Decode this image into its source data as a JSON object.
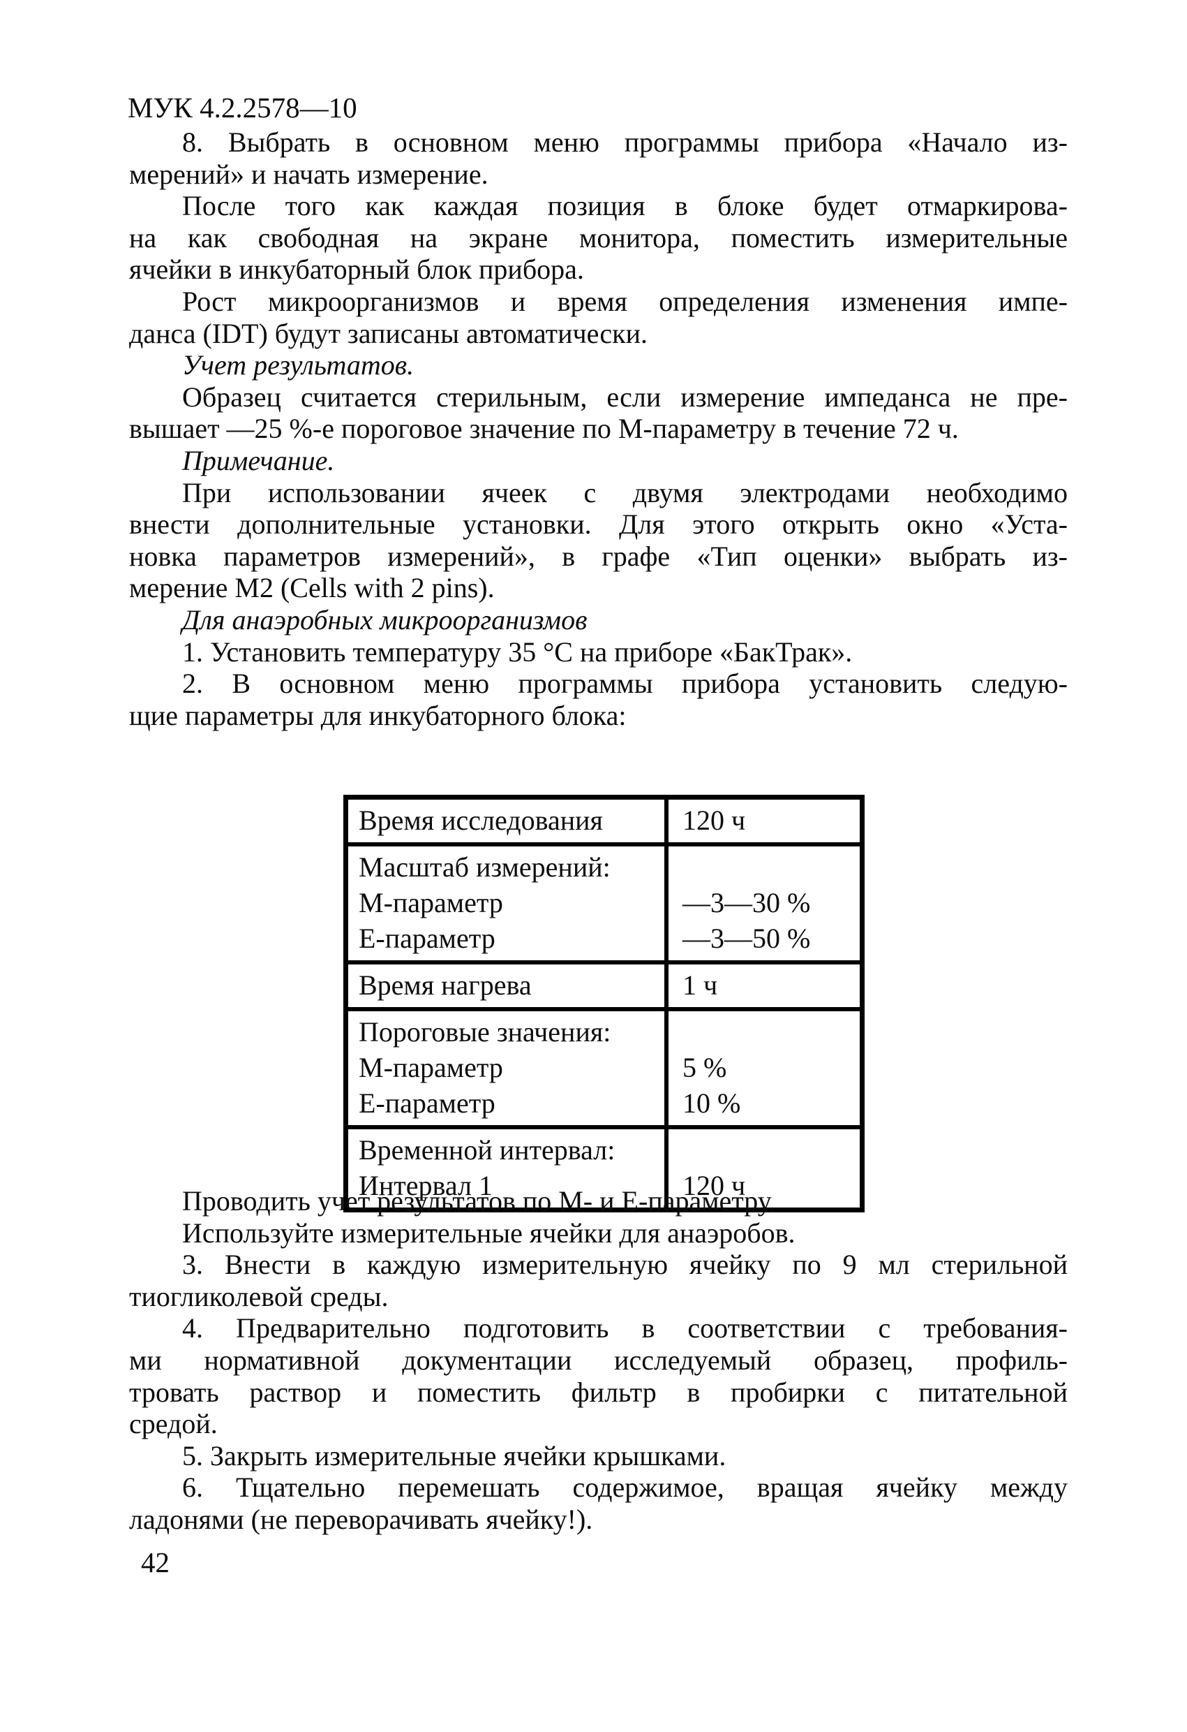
{
  "header": {
    "doc_number": "МУК 4.2.2578—10"
  },
  "content": {
    "top_paragraphs": [
      {
        "italic": false,
        "lines": [
          "8. Выбрать в основном меню программы прибора «Начало из-",
          "мерений» и начать измерение."
        ]
      },
      {
        "italic": false,
        "lines": [
          "После того как каждая позиция в блоке будет отмаркирова-",
          "на как свободная на экране монитора, поместить измерительные",
          "ячейки в инкубаторный блок прибора."
        ]
      },
      {
        "italic": false,
        "lines": [
          "Рост микроорганизмов и время определения изменения импе-",
          "данса (IDT) будут записаны автоматически."
        ]
      },
      {
        "italic": true,
        "lines": [
          "Учет результатов."
        ]
      },
      {
        "italic": false,
        "lines": [
          "Образец считается стерильным, если измерение импеданса не пре-",
          "вышает —25 %-е пороговое значение по М-параметру в течение 72 ч."
        ]
      },
      {
        "italic": true,
        "lines": [
          "Примечание."
        ]
      },
      {
        "italic": false,
        "lines": [
          "При использовании ячеек с двумя электродами необходимо",
          "внести дополнительные установки. Для этого открыть окно «Уста-",
          "новка параметров измерений», в графе «Тип оценки» выбрать из-",
          "мерение М2 (Cells with 2 pins)."
        ]
      },
      {
        "italic": true,
        "lines": [
          "Для анаэробных микроорганизмов"
        ]
      },
      {
        "italic": false,
        "lines": [
          "1. Установить температуру 35 °С на приборе «БакТрак»."
        ]
      },
      {
        "italic": false,
        "lines": [
          "2. В основном меню программы прибора установить следую-",
          "щие параметры для инкубаторного блока:"
        ]
      }
    ],
    "table": {
      "rows": [
        {
          "left": [
            "Время исследования"
          ],
          "right": [
            "120 ч"
          ]
        },
        {
          "left": [
            "Масштаб измерений:",
            "М-параметр",
            "Е-параметр"
          ],
          "right": [
            "",
            "—3—30 %",
            "—3—50 %"
          ]
        },
        {
          "left": [
            "Время нагрева"
          ],
          "right": [
            "1 ч"
          ]
        },
        {
          "left": [
            "Пороговые значения:",
            "М-параметр",
            "Е-параметр"
          ],
          "right": [
            "",
            "5 %",
            "10 %"
          ]
        },
        {
          "left": [
            "Временной интервал:",
            "Интервал 1"
          ],
          "right": [
            "",
            "120 ч"
          ]
        }
      ]
    },
    "bottom_paragraphs": [
      {
        "italic": false,
        "lines": [
          "Проводить учет результатов по М- и Е-параметру."
        ]
      },
      {
        "italic": false,
        "lines": [
          "Используйте измерительные ячейки для анаэробов."
        ]
      },
      {
        "italic": false,
        "lines": [
          "3. Внести в каждую измерительную ячейку по 9 мл стерильной",
          "тиогликолевой среды."
        ]
      },
      {
        "italic": false,
        "lines": [
          "4. Предварительно подготовить в соответствии с требования-",
          "ми нормативной документации исследуемый образец, профиль-",
          "тровать раствор и поместить фильтр в пробирки с питательной",
          "средой."
        ]
      },
      {
        "italic": false,
        "lines": [
          "5. Закрыть измерительные ячейки крышками."
        ]
      },
      {
        "italic": false,
        "lines": [
          "6. Тщательно перемешать содержимое, вращая ячейку между",
          "ладонями (не переворачивать ячейку!)."
        ]
      }
    ]
  },
  "footer": {
    "page_number": "42"
  }
}
